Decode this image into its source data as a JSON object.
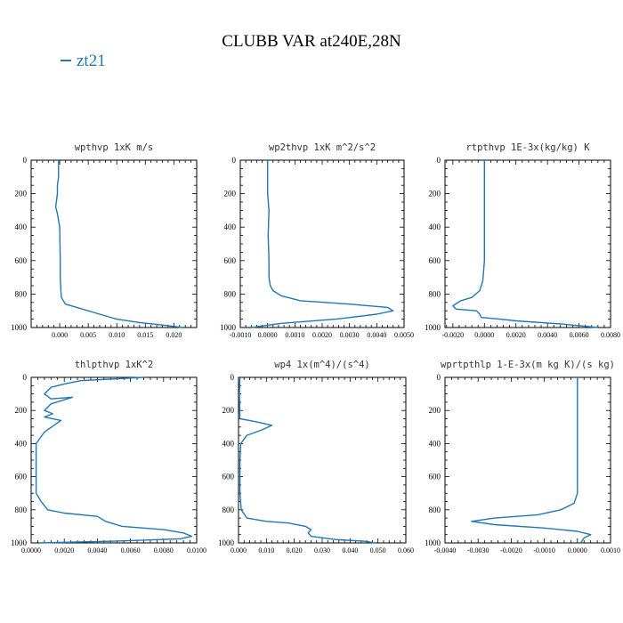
{
  "title": "CLUBB VAR at240E,28N",
  "legend": {
    "label": "zt21",
    "color": "#1f77b4"
  },
  "chart_data": [
    {
      "type": "line",
      "title": "wpthvp   1xK m/s",
      "xlim": [
        -0.005,
        0.024
      ],
      "xticks": [
        0.0,
        0.005,
        0.01,
        0.015,
        0.02
      ],
      "xticklabels": [
        "0.000",
        "0.005",
        "0.010",
        "0.015",
        "0.020"
      ],
      "ylim": [
        1000,
        0
      ],
      "yticks": [
        0,
        200,
        400,
        600,
        800,
        1000
      ],
      "series": [
        {
          "color": "#1f77b4",
          "x": [
            -0.0002,
            -0.0002,
            -0.0004,
            -0.0004,
            -0.0007,
            -0.0004,
            0.0,
            0.0001,
            0.0001,
            0.0002,
            0.0003,
            0.001,
            0.003,
            0.007,
            0.01,
            0.014,
            0.018,
            0.0215
          ],
          "y": [
            0,
            100,
            150,
            200,
            280,
            320,
            400,
            600,
            700,
            780,
            820,
            860,
            880,
            920,
            950,
            970,
            985,
            1000
          ]
        }
      ]
    },
    {
      "type": "line",
      "title": "wp2thvp   1xK m^2/s^2",
      "xlim": [
        -0.001,
        0.005
      ],
      "xticks": [
        -0.001,
        0.0,
        0.001,
        0.002,
        0.003,
        0.004,
        0.005
      ],
      "xticklabels": [
        "-0.0010",
        "0.0000",
        "0.0010",
        "0.0020",
        "0.0030",
        "0.0040",
        "0.0050"
      ],
      "ylim": [
        1000,
        0
      ],
      "yticks": [
        0,
        200,
        400,
        600,
        800,
        1000
      ],
      "series": [
        {
          "color": "#1f77b4",
          "x": [
            0.0,
            0.0,
            5e-05,
            2e-05,
            5e-05,
            5e-05,
            0.0001,
            0.0002,
            0.0005,
            0.0012,
            0.003,
            0.0044,
            0.0046,
            0.004,
            0.0025,
            0.0005,
            -0.0006
          ],
          "y": [
            0,
            200,
            300,
            450,
            600,
            700,
            750,
            780,
            810,
            840,
            860,
            880,
            900,
            920,
            950,
            975,
            1000
          ]
        }
      ]
    },
    {
      "type": "line",
      "title": "rtpthvp   1E-3x(kg/kg) K",
      "xlim": [
        -0.0025,
        0.008
      ],
      "xticks": [
        -0.002,
        0.0,
        0.002,
        0.004,
        0.006,
        0.008
      ],
      "xticklabels": [
        "-0.0020",
        "0.0000",
        "0.0020",
        "0.0040",
        "0.0060",
        "0.0080"
      ],
      "ylim": [
        1000,
        0
      ],
      "yticks": [
        0,
        200,
        400,
        600,
        800,
        1000
      ],
      "series": [
        {
          "color": "#1f77b4",
          "x": [
            0.0,
            0.0,
            0.0,
            -0.0001,
            -0.0003,
            -0.0008,
            -0.0015,
            -0.002,
            -0.0018,
            -0.0005,
            -0.0003,
            -0.0002,
            0.001,
            0.002,
            0.005,
            0.0072
          ],
          "y": [
            0,
            400,
            600,
            720,
            780,
            820,
            840,
            870,
            890,
            900,
            920,
            940,
            950,
            960,
            980,
            1000
          ]
        }
      ]
    },
    {
      "type": "line",
      "title": "thlpthvp   1xK^2",
      "xlim": [
        0.0,
        0.01
      ],
      "xticks": [
        0.0,
        0.002,
        0.004,
        0.006,
        0.008,
        0.01
      ],
      "xticklabels": [
        "0.0000",
        "0.0020",
        "0.0040",
        "0.0060",
        "0.0080",
        "0.0100"
      ],
      "ylim": [
        1000,
        0
      ],
      "yticks": [
        0,
        200,
        400,
        600,
        800,
        1000
      ],
      "series": [
        {
          "color": "#1f77b4",
          "x": [
            0.0068,
            0.003,
            0.002,
            0.0012,
            0.0008,
            0.0012,
            0.0025,
            0.0012,
            0.0008,
            0.0013,
            0.0008,
            0.0018,
            0.0008,
            0.0003,
            0.0003,
            0.0003,
            0.0003,
            0.0006,
            0.001,
            0.002,
            0.004,
            0.0045,
            0.0055,
            0.008,
            0.0092,
            0.0097,
            0.009,
            0.005,
            0.0005
          ],
          "y": [
            0,
            20,
            40,
            60,
            100,
            130,
            120,
            160,
            200,
            220,
            240,
            260,
            330,
            400,
            450,
            600,
            700,
            750,
            800,
            820,
            840,
            870,
            900,
            920,
            940,
            960,
            975,
            990,
            1000
          ]
        }
      ]
    },
    {
      "type": "line",
      "title": "wp4   1x(m^4)/(s^4)",
      "xlim": [
        0.0,
        0.06
      ],
      "xticks": [
        0.0,
        0.01,
        0.02,
        0.03,
        0.04,
        0.05,
        0.06
      ],
      "xticklabels": [
        "0.000",
        "0.010",
        "0.020",
        "0.030",
        "0.040",
        "0.050",
        "0.060"
      ],
      "ylim": [
        1000,
        0
      ],
      "yticks": [
        0,
        200,
        400,
        600,
        800,
        1000
      ],
      "series": [
        {
          "color": "#1f77b4",
          "x": [
            0.0005,
            0.0003,
            0.0005,
            0.004,
            0.008,
            0.012,
            0.008,
            0.003,
            0.0008,
            0.0005,
            0.0005,
            0.001,
            0.003,
            0.01,
            0.018,
            0.024,
            0.026,
            0.025,
            0.026,
            0.035,
            0.045,
            0.049
          ],
          "y": [
            0,
            100,
            250,
            260,
            275,
            290,
            320,
            350,
            400,
            500,
            700,
            800,
            850,
            870,
            880,
            900,
            920,
            940,
            960,
            980,
            990,
            1000
          ]
        }
      ]
    },
    {
      "type": "line",
      "title": "wprtpthlp   1-E-3x(m kg K)/(s kg)",
      "xlim": [
        -0.004,
        0.001
      ],
      "xticks": [
        -0.004,
        -0.003,
        -0.002,
        -0.001,
        0.0,
        0.001
      ],
      "xticklabels": [
        "-0.0040",
        "-0.0030",
        "-0.0020",
        "-0.0010",
        "0.0000",
        "0.0010"
      ],
      "ylim": [
        1000,
        0
      ],
      "yticks": [
        0,
        200,
        400,
        600,
        800,
        1000
      ],
      "series": [
        {
          "color": "#1f77b4",
          "x": [
            0.0,
            0.0,
            0.0,
            -0.0001,
            -0.0005,
            -0.0012,
            -0.0025,
            -0.0032,
            -0.0025,
            -0.001,
            0.0,
            0.0004,
            0.0002,
            0.0001
          ],
          "y": [
            0,
            400,
            700,
            760,
            800,
            830,
            850,
            870,
            890,
            910,
            930,
            950,
            970,
            1000
          ]
        }
      ]
    }
  ]
}
